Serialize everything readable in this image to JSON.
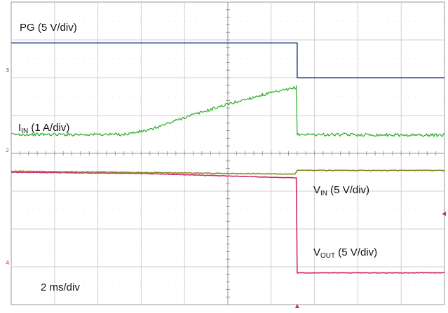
{
  "chart_data": {
    "type": "line",
    "timebase": "2 ms/div",
    "divisions": {
      "x": 10,
      "y": 8
    },
    "x_unit": "ms",
    "xlim": [
      0,
      20
    ],
    "channels": [
      {
        "label_main": "PG",
        "label_sub": "",
        "label_scale": " (5 V/div)",
        "scale": "5 V/div",
        "color": "#2b4a8b",
        "marker": "3",
        "points_div": [
          [
            0,
            6.92
          ],
          [
            6.6,
            6.92
          ],
          [
            6.6,
            6.0
          ],
          [
            10.0,
            6.0
          ]
        ],
        "noise": 0
      },
      {
        "label_main": "I",
        "label_sub": "IN",
        "label_scale": " (1 A/div)",
        "scale": "1 A/div",
        "color": "#33b233",
        "marker": "2",
        "points_div": [
          [
            0,
            4.5
          ],
          [
            2.6,
            4.5
          ],
          [
            3.2,
            4.62
          ],
          [
            4.0,
            4.95
          ],
          [
            5.0,
            5.3
          ],
          [
            5.8,
            5.55
          ],
          [
            6.45,
            5.7
          ],
          [
            6.58,
            5.75
          ],
          [
            6.6,
            4.5
          ],
          [
            10.0,
            4.48
          ]
        ],
        "noise": 0.04
      },
      {
        "label_main": "V",
        "label_sub": "IN",
        "label_scale": " (5 V/div)",
        "scale": "5 V/div",
        "color": "#8a8a2a",
        "marker": "",
        "points_div": [
          [
            0,
            3.53
          ],
          [
            6.55,
            3.45
          ],
          [
            6.6,
            3.55
          ],
          [
            10.0,
            3.55
          ]
        ],
        "noise": 0.01
      },
      {
        "label_main": "V",
        "label_sub": "OUT",
        "label_scale": " (5 V/div)",
        "scale": "5 V/div",
        "color": "#d12a6e",
        "marker": "4",
        "points_div": [
          [
            0,
            3.5
          ],
          [
            3.0,
            3.47
          ],
          [
            5.0,
            3.4
          ],
          [
            6.58,
            3.35
          ],
          [
            6.6,
            0.84
          ],
          [
            10.0,
            0.84
          ]
        ],
        "noise": 0.008
      }
    ]
  },
  "timebase_label": "2 ms/div"
}
